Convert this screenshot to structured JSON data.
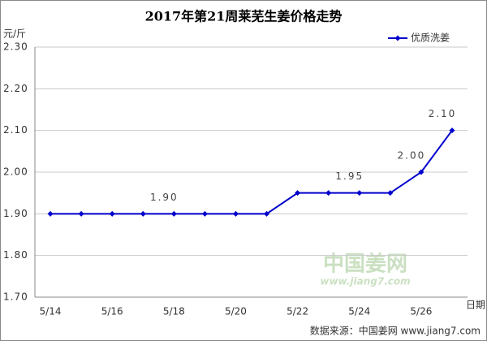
{
  "chart_data": {
    "type": "line",
    "title": "2017年第21周莱芜生姜价格走势",
    "y_label": "元/斤",
    "x_label": "日期",
    "source": "数据来源：中国姜网 www.jiang7.com",
    "watermark": {
      "name": "中国姜网",
      "url": "www.jiang7.com"
    },
    "categories": [
      "5/14",
      null,
      "5/16",
      null,
      "5/18",
      null,
      "5/20",
      null,
      "5/22",
      null,
      "5/24",
      null,
      "5/26",
      null
    ],
    "series": [
      {
        "name": "优质洗姜",
        "color": "#0000cc",
        "values": [
          1.9,
          1.9,
          1.9,
          1.9,
          1.9,
          1.9,
          1.9,
          1.9,
          1.95,
          1.95,
          1.95,
          1.95,
          2.0,
          2.1
        ],
        "value_labels": [
          null,
          null,
          null,
          null,
          "1.90",
          null,
          null,
          null,
          null,
          null,
          "1.95",
          null,
          "2.00",
          "2.10"
        ]
      }
    ],
    "ylim": [
      1.7,
      2.3
    ],
    "yticks": [
      {
        "value": 1.7,
        "label": "1.70"
      },
      {
        "value": 1.8,
        "label": "1.80"
      },
      {
        "value": 1.9,
        "label": "1.90"
      },
      {
        "value": 2.0,
        "label": "2.00"
      },
      {
        "value": 2.1,
        "label": "2.10"
      },
      {
        "value": 2.2,
        "label": "2.20"
      },
      {
        "value": 2.3,
        "label": "2.30"
      }
    ],
    "grid": true,
    "legend": "top-right"
  }
}
